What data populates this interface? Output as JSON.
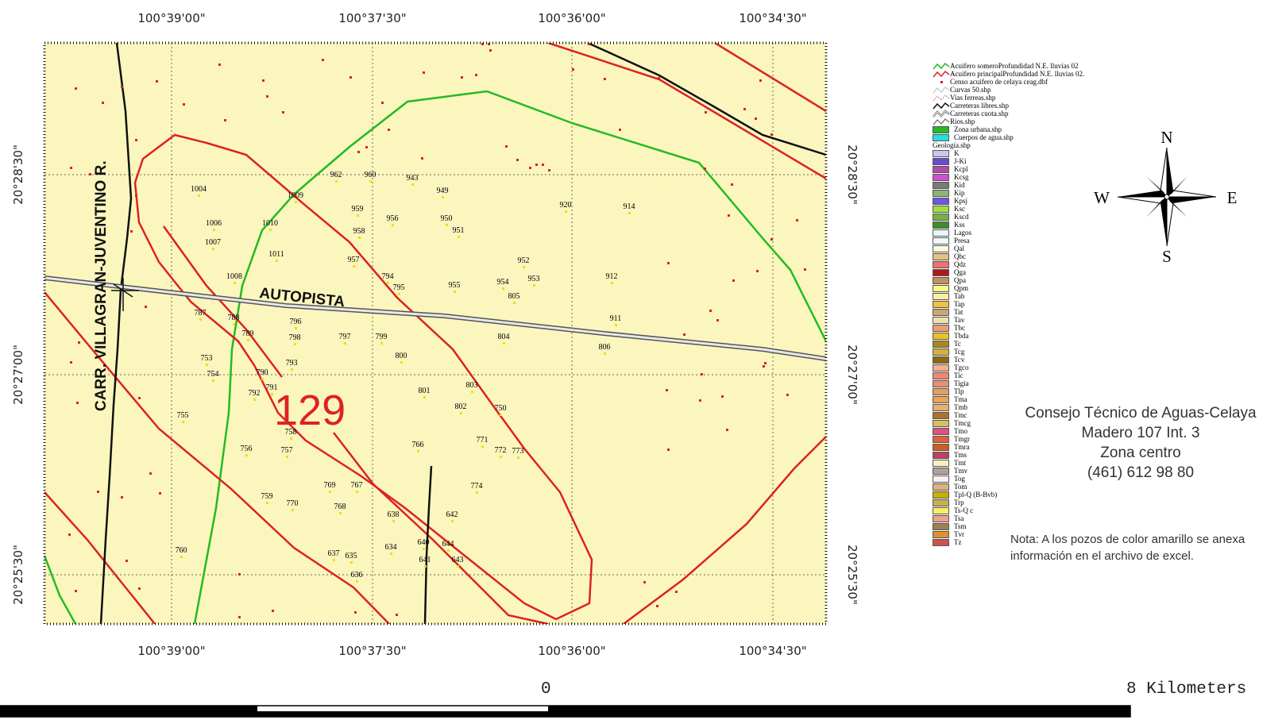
{
  "coords": {
    "top": [
      "100°39'00\"",
      "100°37'30\"",
      "100°36'00\"",
      "100°34'30\""
    ],
    "bottom": [
      "100°39'00\"",
      "100°37'30\"",
      "100°36'00\"",
      "100°34'30\""
    ],
    "left": [
      "20°28'30\"",
      "20°27'00\"",
      "20°25'30\""
    ],
    "right": [
      "20°28'30\"",
      "20°27'00\"",
      "20°25'30\""
    ]
  },
  "map_labels": {
    "road_vertical": "CARR. VILLAGRAN-JUVENTINO R.",
    "autopista": "AUTOPISTA",
    "zone_number": "129"
  },
  "wells": [
    "1004",
    "1009",
    "962",
    "960",
    "943",
    "949",
    "1006",
    "1010",
    "959",
    "956",
    "950",
    "951",
    "920",
    "914",
    "1007",
    "958",
    "1011",
    "957",
    "952",
    "1008",
    "794",
    "795",
    "955",
    "954",
    "953",
    "805",
    "912",
    "787",
    "788",
    "796",
    "789",
    "798",
    "797",
    "799",
    "804",
    "911",
    "806",
    "753",
    "754",
    "793",
    "800",
    "790",
    "791",
    "792",
    "801",
    "803",
    "802",
    "750",
    "755",
    "758",
    "756",
    "757",
    "766",
    "771",
    "772",
    "773",
    "774",
    "759",
    "770",
    "769",
    "767",
    "768",
    "638",
    "642",
    "640",
    "644",
    "641",
    "643",
    "634",
    "637",
    "635",
    "636",
    "760"
  ],
  "legend": {
    "lines": [
      "Acuifero someroProfundidad N.E. lluvias 02",
      "Acuifero principalProfundidad N.E. lluvias 02.",
      "Censo acuifero de celaya ceag.dbf",
      "Curvas 50.shp",
      "Vias ferreas.shp",
      "Carreteras libres.shp",
      "Carreteras cuota.shp",
      "Rios.shp"
    ],
    "polys": [
      "Zona urbana.shp",
      "Cuerpos de agua.shp"
    ],
    "geology_title": "Geología.shp",
    "geology": [
      {
        "code": "K",
        "color": "#c8c8ec"
      },
      {
        "code": "J-Ki",
        "color": "#6a4ad0"
      },
      {
        "code": "Kcpl",
        "color": "#b04ab0"
      },
      {
        "code": "Kcsg",
        "color": "#d050d0"
      },
      {
        "code": "Kid",
        "color": "#7a7a7a"
      },
      {
        "code": "Kip",
        "color": "#8cb478"
      },
      {
        "code": "Kpsj",
        "color": "#6a5ae0"
      },
      {
        "code": "Ksc",
        "color": "#a0e040"
      },
      {
        "code": "Kscd",
        "color": "#78b048"
      },
      {
        "code": "Kss",
        "color": "#3e8c2e"
      },
      {
        "code": "Lagos",
        "color": "#e8f6f6"
      },
      {
        "code": "Presa",
        "color": "#f0f8f8"
      },
      {
        "code": "Qal",
        "color": "#fafadc"
      },
      {
        "code": "Qbc",
        "color": "#e8c080"
      },
      {
        "code": "Qdz",
        "color": "#f07070"
      },
      {
        "code": "Qga",
        "color": "#b01818"
      },
      {
        "code": "Qpa",
        "color": "#c09060"
      },
      {
        "code": "Qpm",
        "color": "#fafa80"
      },
      {
        "code": "Tab",
        "color": "#f8f0a0"
      },
      {
        "code": "Tap",
        "color": "#f0c040"
      },
      {
        "code": "Tat",
        "color": "#c8a870"
      },
      {
        "code": "Tav",
        "color": "#f0e0b0"
      },
      {
        "code": "Tbc",
        "color": "#e8a070"
      },
      {
        "code": "Tbda",
        "color": "#f0c020"
      },
      {
        "code": "Tc",
        "color": "#a88820"
      },
      {
        "code": "Tcg",
        "color": "#d4b040"
      },
      {
        "code": "Tcv",
        "color": "#8a6a10"
      },
      {
        "code": "Tgco",
        "color": "#f4b090"
      },
      {
        "code": "Tic",
        "color": "#f08870"
      },
      {
        "code": "Tigia",
        "color": "#e89070"
      },
      {
        "code": "Tlp",
        "color": "#e0a060"
      },
      {
        "code": "Tma",
        "color": "#f0a050"
      },
      {
        "code": "Tmb",
        "color": "#e8b070"
      },
      {
        "code": "Tmc",
        "color": "#b07030"
      },
      {
        "code": "Tmcg",
        "color": "#d8c060"
      },
      {
        "code": "Tmo",
        "color": "#e05080"
      },
      {
        "code": "Tmgr",
        "color": "#e06040"
      },
      {
        "code": "Tmra",
        "color": "#c86020"
      },
      {
        "code": "Tms",
        "color": "#c04060"
      },
      {
        "code": "Tmt",
        "color": "#f8f0c0"
      },
      {
        "code": "Tmv",
        "color": "#b0a0a0"
      },
      {
        "code": "Tog",
        "color": "#f8f0f0"
      },
      {
        "code": "Tom",
        "color": "#e0b080"
      },
      {
        "code": "Tpl-Q (B-Bvb)",
        "color": "#c8b000"
      },
      {
        "code": "Trp",
        "color": "#c8b050"
      },
      {
        "code": "Ts-Q c",
        "color": "#f8f060"
      },
      {
        "code": "Tsa",
        "color": "#f0a090"
      },
      {
        "code": "Tsm",
        "color": "#a08050"
      },
      {
        "code": "Tvr",
        "color": "#e09030"
      },
      {
        "code": "Tz",
        "color": "#d05050"
      }
    ]
  },
  "compass": {
    "n": "N",
    "s": "S",
    "e": "E",
    "w": "W"
  },
  "info": [
    "Consejo Técnico de Aguas-Celaya",
    "Madero 107 Int. 3",
    "Zona centro",
    "(461) 612 98 80"
  ],
  "note": "Nota: A los pozos de color amarillo se anexa información en el archivo de excel.",
  "scale": {
    "zero": "0",
    "end": "8 Kilometers"
  },
  "colors": {
    "map_bg": "#fbf6be",
    "aquifer_shallow": "#22bb22",
    "aquifer_main": "#dd2222",
    "road": "#111111",
    "point": "#dd2222",
    "well_marker": "#f0e000"
  }
}
